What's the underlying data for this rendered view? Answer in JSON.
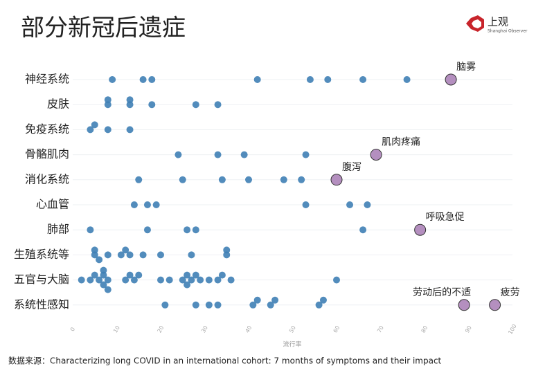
{
  "header": {
    "logo": "上观",
    "logo_sub": "Shanghai Observer"
  },
  "chart_data": {
    "type": "strip",
    "title": "部分新冠后遗症",
    "xlabel": "流行率",
    "source": "数据来源：Characterizing long COVID in an international cohort: 7 months of symptoms and their impact",
    "xlim": [
      0,
      100
    ],
    "xticks": [
      0,
      10,
      20,
      30,
      40,
      50,
      60,
      70,
      80,
      90,
      100
    ],
    "color": "#3f7fb5",
    "highlight_color": "#b48fbf",
    "rows": [
      {
        "name": "神经系统",
        "values": [
          9,
          16,
          18,
          42,
          54,
          58,
          66,
          76
        ],
        "highlights": [
          {
            "label": "脑雾",
            "value": 86
          }
        ]
      },
      {
        "name": "皮肤",
        "values": [
          8,
          8,
          13,
          13,
          18,
          28,
          33
        ],
        "highlights": []
      },
      {
        "name": "免疫系统",
        "values": [
          4,
          5,
          8,
          13
        ],
        "highlights": []
      },
      {
        "name": "骨骼肌肉",
        "values": [
          24,
          33,
          39,
          53
        ],
        "highlights": [
          {
            "label": "肌肉疼痛",
            "value": 69
          }
        ]
      },
      {
        "name": "消化系统",
        "values": [
          15,
          25,
          34,
          40,
          48,
          52
        ],
        "highlights": [
          {
            "label": "腹泻",
            "value": 60
          }
        ]
      },
      {
        "name": "心血管",
        "values": [
          14,
          17,
          19,
          53,
          63,
          67
        ],
        "highlights": []
      },
      {
        "name": "肺部",
        "values": [
          4,
          17,
          26,
          28,
          66
        ],
        "highlights": [
          {
            "label": "呼吸急促",
            "value": 79
          }
        ]
      },
      {
        "name": "生殖系统等",
        "values": [
          5,
          5,
          6,
          8,
          11,
          12,
          13,
          16,
          20,
          27,
          35,
          35
        ],
        "highlights": []
      },
      {
        "name": "五官与大脑",
        "values": [
          2,
          4,
          5,
          6,
          7,
          7,
          7,
          8,
          8,
          12,
          13,
          14,
          15,
          20,
          22,
          25,
          26,
          26,
          27,
          28,
          29,
          31,
          33,
          34,
          36,
          60
        ],
        "highlights": []
      },
      {
        "name": "系统性感知",
        "values": [
          21,
          28,
          31,
          33,
          41,
          42,
          45,
          46,
          56,
          57
        ],
        "highlights": [
          {
            "label": "劳动后的不适",
            "value": 89
          },
          {
            "label": "疲劳",
            "value": 96
          }
        ]
      }
    ]
  }
}
